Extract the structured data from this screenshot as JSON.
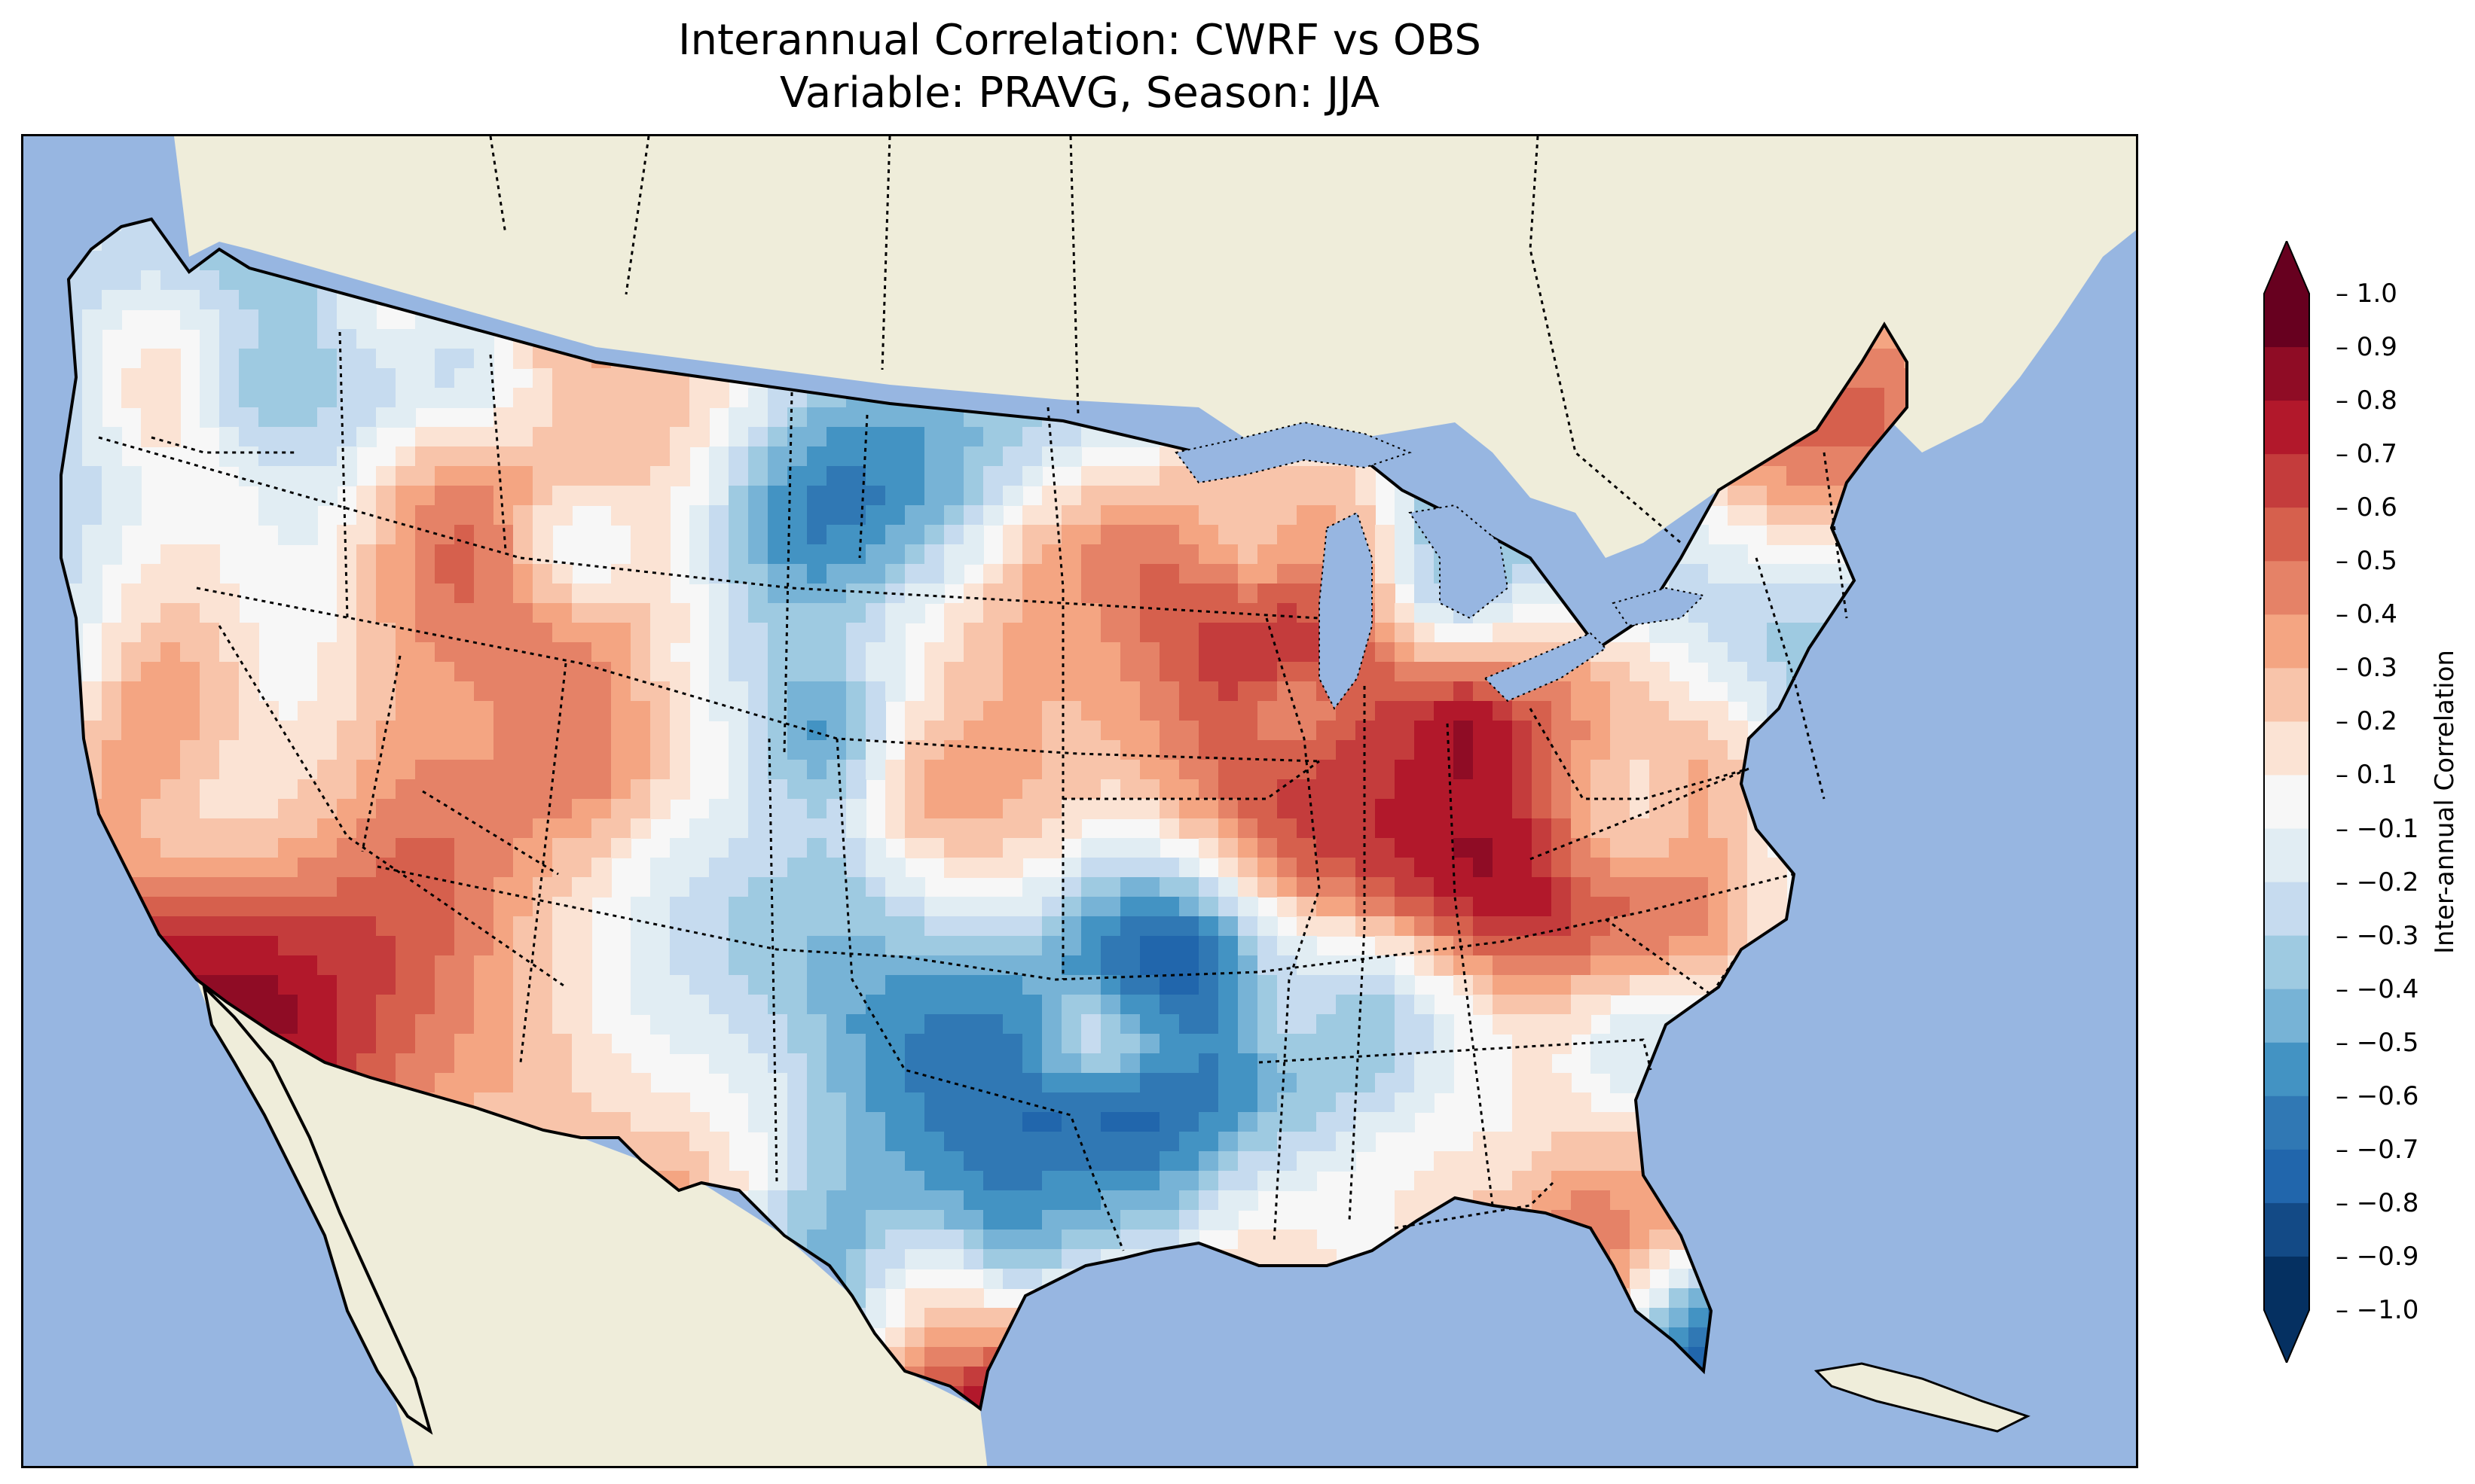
{
  "title_line1": "Interannual Correlation: CWRF vs OBS",
  "title_line2": "Variable: PRAVG, Season: JJA",
  "colorbar": {
    "label": "Inter-annual Correlation",
    "ticks": [
      "1.0",
      "0.9",
      "0.8",
      "0.7",
      "0.6",
      "0.5",
      "0.4",
      "0.3",
      "0.2",
      "0.1",
      "−0.1",
      "−0.2",
      "−0.3",
      "−0.4",
      "−0.5",
      "−0.6",
      "−0.7",
      "−0.8",
      "−0.9",
      "−1.0"
    ],
    "colors": [
      "#67001f",
      "#8f0c25",
      "#b2182b",
      "#c43c3c",
      "#d6604d",
      "#e58267",
      "#f4a582",
      "#f8c4aa",
      "#fbe3d4",
      "#f7f7f7",
      "#e1edf3",
      "#c6dbef",
      "#9ecae1",
      "#77b3d6",
      "#4393c3",
      "#3078b4",
      "#2166ac",
      "#134a86",
      "#053061"
    ],
    "extend": "both"
  },
  "map": {
    "ocean_color": "#97b6e1",
    "land_color": "#efedda",
    "features": [
      "coastlines",
      "country-borders",
      "state-borders",
      "lakes"
    ]
  }
}
